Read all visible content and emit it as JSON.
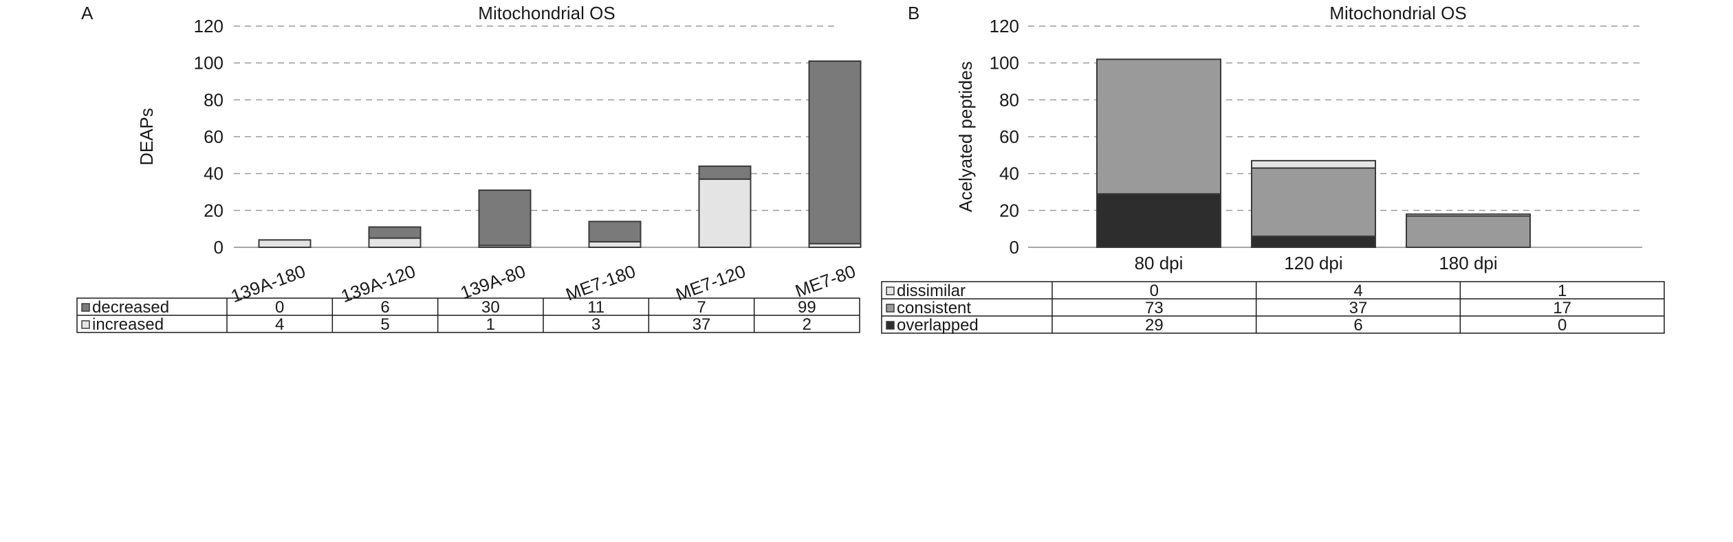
{
  "panels": [
    {
      "letter": "A",
      "chart_data": {
        "type": "bar",
        "stacked": true,
        "title": "Mitochondrial OS",
        "xlabel": "",
        "ylabel": "DEAPs",
        "ylim": [
          0,
          120
        ],
        "yticks": [
          0,
          20,
          40,
          60,
          80,
          100,
          120
        ],
        "grid": true,
        "categories": [
          "139A-180",
          "139A-120",
          "139A-80",
          "ME7-180",
          "ME7-120",
          "ME7-80"
        ],
        "series": [
          {
            "name": "increased",
            "color": "#e4e4e4",
            "marker": "□",
            "values": [
              4,
              5,
              1,
              3,
              37,
              2
            ]
          },
          {
            "name": "decreased",
            "color": "#7a7a7a",
            "marker": "■",
            "values": [
              0,
              6,
              30,
              11,
              7,
              99
            ]
          }
        ],
        "table_rows": [
          "decreased",
          "increased"
        ]
      }
    },
    {
      "letter": "B",
      "chart_data": {
        "type": "bar",
        "stacked": true,
        "title": "Mitochondrial OS",
        "xlabel": "",
        "ylabel": "Acelyated peptides",
        "ylim": [
          0,
          120
        ],
        "yticks": [
          0,
          20,
          40,
          60,
          80,
          100,
          120
        ],
        "grid": true,
        "categories": [
          "80 dpi",
          "120 dpi",
          "180 dpi"
        ],
        "series": [
          {
            "name": "overlapped",
            "color": "#2d2d2d",
            "marker": "■",
            "values": [
              29,
              6,
              0
            ]
          },
          {
            "name": "consistent",
            "color": "#9a9a9a",
            "marker": "■",
            "values": [
              73,
              37,
              17
            ]
          },
          {
            "name": "dissimilar",
            "color": "#e4e4e4",
            "marker": "□",
            "values": [
              0,
              4,
              1
            ]
          }
        ],
        "table_rows": [
          "dissimilar",
          "consistent",
          "overlapped"
        ]
      }
    }
  ]
}
